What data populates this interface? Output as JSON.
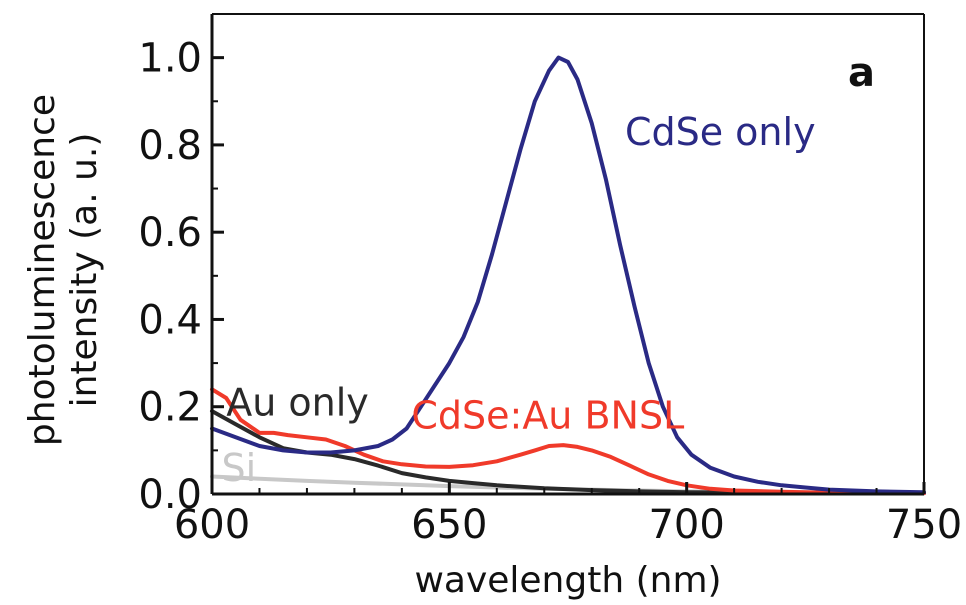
{
  "chart_data": {
    "type": "line",
    "panel_label": "a",
    "xlabel": "wavelength (nm)",
    "ylabel_lines": [
      "photoluminescence",
      "intensity (a. u.)"
    ],
    "xlim": [
      600,
      750
    ],
    "ylim": [
      0,
      1.1
    ],
    "x_ticks": [
      600,
      650,
      700,
      750
    ],
    "x_tick_labels": [
      "600",
      "650",
      "700",
      "750"
    ],
    "y_ticks": [
      0,
      0.2,
      0.4,
      0.6,
      0.8,
      1.0
    ],
    "y_tick_labels": [
      "0.0",
      "0.2",
      "0.4",
      "0.6",
      "0.8",
      "1.0"
    ],
    "grid": false,
    "series": [
      {
        "name": "Si",
        "color": "#c8c8c8",
        "points": [
          [
            600,
            0.04
          ],
          [
            610,
            0.035
          ],
          [
            620,
            0.03
          ],
          [
            630,
            0.026
          ],
          [
            640,
            0.022
          ],
          [
            650,
            0.018
          ],
          [
            660,
            0.015
          ],
          [
            670,
            0.012
          ],
          [
            680,
            0.01
          ],
          [
            690,
            0.008
          ],
          [
            700,
            0.006
          ],
          [
            720,
            0.004
          ],
          [
            750,
            0.003
          ]
        ]
      },
      {
        "name": "Au only",
        "color": "#2a2a2a",
        "points": [
          [
            600,
            0.19
          ],
          [
            605,
            0.16
          ],
          [
            610,
            0.13
          ],
          [
            615,
            0.105
          ],
          [
            620,
            0.095
          ],
          [
            625,
            0.09
          ],
          [
            630,
            0.08
          ],
          [
            635,
            0.065
          ],
          [
            640,
            0.048
          ],
          [
            645,
            0.038
          ],
          [
            650,
            0.03
          ],
          [
            655,
            0.025
          ],
          [
            660,
            0.02
          ],
          [
            670,
            0.013
          ],
          [
            680,
            0.009
          ],
          [
            690,
            0.006
          ],
          [
            700,
            0.004
          ],
          [
            720,
            0.003
          ],
          [
            750,
            0.002
          ]
        ]
      },
      {
        "name": "CdSe:Au BNSL",
        "color": "#f03a2a",
        "points": [
          [
            600,
            0.24
          ],
          [
            603,
            0.22
          ],
          [
            606,
            0.17
          ],
          [
            610,
            0.14
          ],
          [
            613,
            0.14
          ],
          [
            616,
            0.135
          ],
          [
            620,
            0.13
          ],
          [
            624,
            0.125
          ],
          [
            628,
            0.11
          ],
          [
            632,
            0.09
          ],
          [
            636,
            0.075
          ],
          [
            640,
            0.068
          ],
          [
            645,
            0.063
          ],
          [
            650,
            0.062
          ],
          [
            655,
            0.066
          ],
          [
            660,
            0.075
          ],
          [
            665,
            0.09
          ],
          [
            668,
            0.1
          ],
          [
            671,
            0.11
          ],
          [
            674,
            0.112
          ],
          [
            677,
            0.108
          ],
          [
            680,
            0.1
          ],
          [
            684,
            0.085
          ],
          [
            688,
            0.065
          ],
          [
            692,
            0.045
          ],
          [
            696,
            0.03
          ],
          [
            700,
            0.02
          ],
          [
            705,
            0.012
          ],
          [
            710,
            0.008
          ],
          [
            720,
            0.005
          ],
          [
            730,
            0.003
          ],
          [
            750,
            0.002
          ]
        ]
      },
      {
        "name": "CdSe only",
        "color": "#2a2a85",
        "points": [
          [
            600,
            0.15
          ],
          [
            605,
            0.13
          ],
          [
            610,
            0.11
          ],
          [
            615,
            0.1
          ],
          [
            620,
            0.095
          ],
          [
            625,
            0.095
          ],
          [
            630,
            0.1
          ],
          [
            635,
            0.11
          ],
          [
            638,
            0.125
          ],
          [
            641,
            0.15
          ],
          [
            644,
            0.2
          ],
          [
            647,
            0.25
          ],
          [
            650,
            0.3
          ],
          [
            653,
            0.36
          ],
          [
            656,
            0.44
          ],
          [
            659,
            0.55
          ],
          [
            662,
            0.67
          ],
          [
            665,
            0.79
          ],
          [
            668,
            0.9
          ],
          [
            671,
            0.97
          ],
          [
            673,
            1.0
          ],
          [
            675,
            0.99
          ],
          [
            677,
            0.95
          ],
          [
            680,
            0.85
          ],
          [
            683,
            0.72
          ],
          [
            686,
            0.57
          ],
          [
            689,
            0.43
          ],
          [
            692,
            0.3
          ],
          [
            695,
            0.2
          ],
          [
            698,
            0.13
          ],
          [
            701,
            0.09
          ],
          [
            705,
            0.06
          ],
          [
            710,
            0.04
          ],
          [
            715,
            0.028
          ],
          [
            720,
            0.02
          ],
          [
            725,
            0.015
          ],
          [
            730,
            0.01
          ],
          [
            740,
            0.006
          ],
          [
            750,
            0.004
          ]
        ]
      }
    ],
    "annotations": [
      {
        "text": "CdSe only",
        "series": "CdSe only",
        "x": 687,
        "y": 0.8
      },
      {
        "text": "CdSe:Au BNSL",
        "series": "CdSe:Au BNSL",
        "x": 642,
        "y": 0.15
      },
      {
        "text": "Au only",
        "series": "Au only",
        "x": 603,
        "y": 0.18
      },
      {
        "text": "Si",
        "series": "Si",
        "x": 602,
        "y": 0.03
      }
    ]
  }
}
